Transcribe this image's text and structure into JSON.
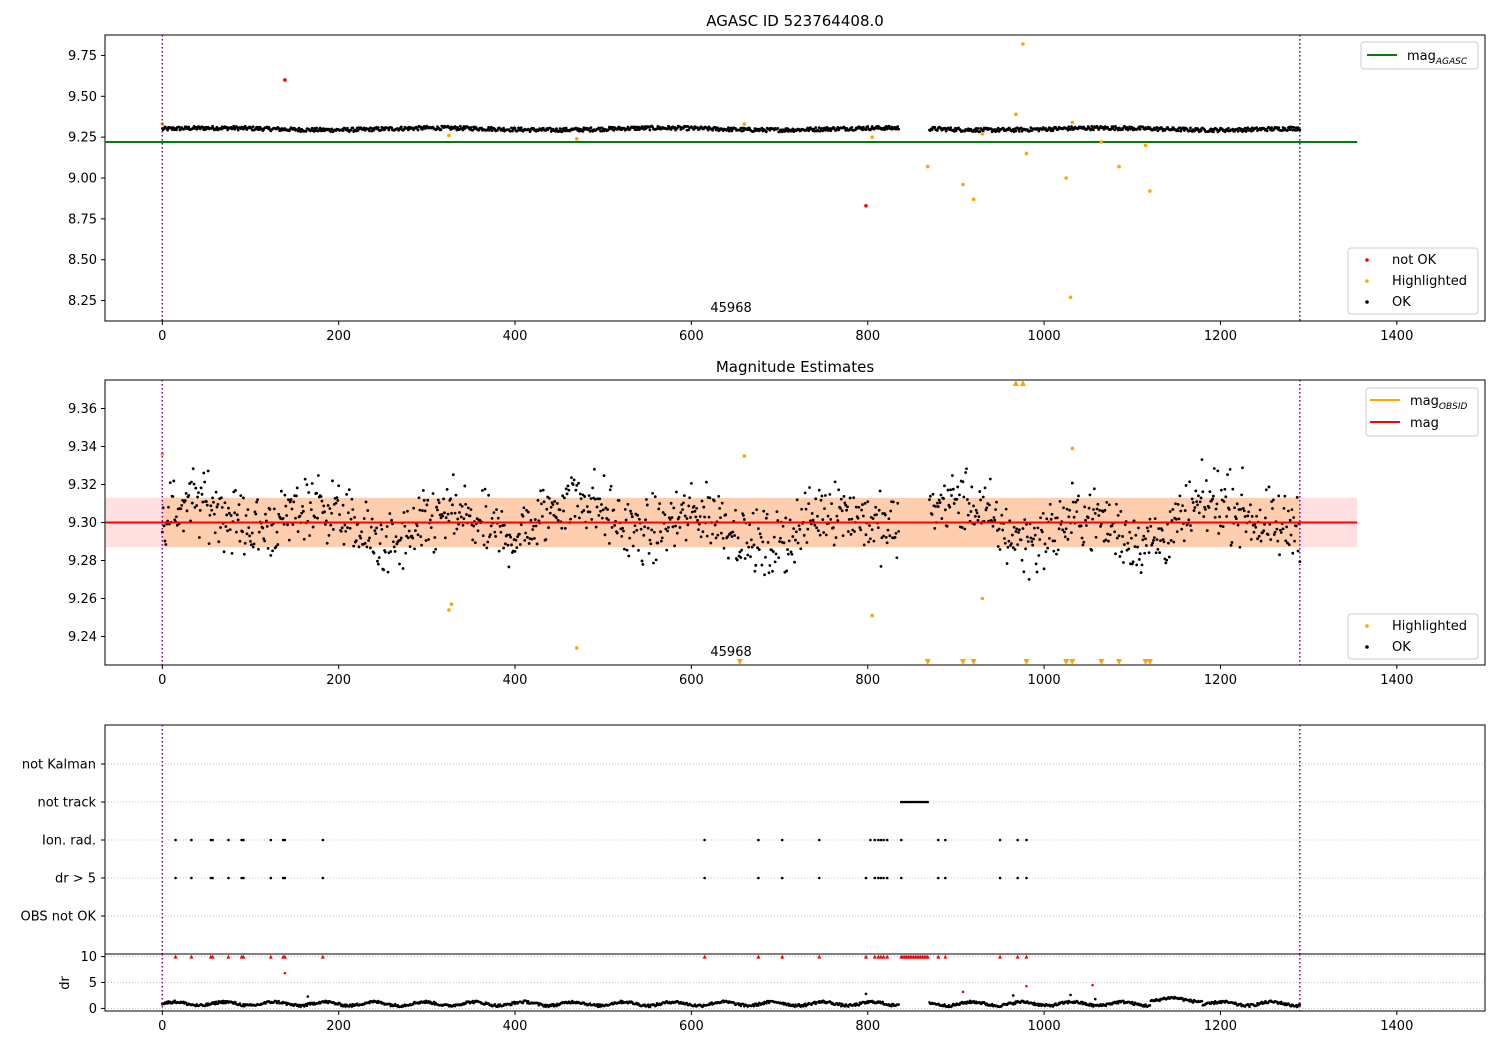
{
  "chart_data": [
    {
      "type": "scatter",
      "title": "AGASC ID 523764408.0",
      "xlim": [
        -65,
        1500
      ],
      "ylim": [
        8.125,
        9.875
      ],
      "xticks": [
        0,
        200,
        400,
        600,
        800,
        1000,
        1200,
        1400
      ],
      "yticks": [
        8.25,
        8.5,
        8.75,
        9.0,
        9.25,
        9.5,
        9.75
      ],
      "ytick_labels": [
        "8.25",
        "8.50",
        "8.75",
        "9.00",
        "9.25",
        "9.50",
        "9.75"
      ],
      "obsid_label": "45968",
      "obsid_x": 645,
      "obsid_bounds": [
        0,
        1290
      ],
      "mag_agasc": {
        "label": "mag$_{AGASC}$",
        "display": "mag",
        "sub": "AGASC",
        "value": 9.22,
        "x": [
          -65,
          1355
        ],
        "color": "#008000"
      },
      "series": [
        {
          "name": "not OK",
          "color": "#ff0000",
          "points": [
            [
              139,
              9.6
            ],
            [
              798,
              8.83
            ]
          ]
        },
        {
          "name": "Highlighted",
          "color": "#ffa500",
          "points": [
            [
              0,
              9.33
            ],
            [
              325,
              9.26
            ],
            [
              470,
              9.24
            ],
            [
              660,
              9.33
            ],
            [
              805,
              9.25
            ],
            [
              868,
              9.07
            ],
            [
              908,
              8.96
            ],
            [
              920,
              8.87
            ],
            [
              930,
              9.27
            ],
            [
              968,
              9.39
            ],
            [
              976,
              9.82
            ],
            [
              980,
              9.15
            ],
            [
              1025,
              9.0
            ],
            [
              1030,
              8.27
            ],
            [
              1032,
              9.34
            ],
            [
              1065,
              9.22
            ],
            [
              1085,
              9.07
            ],
            [
              1115,
              9.2
            ],
            [
              1120,
              8.92
            ]
          ]
        },
        {
          "name": "OK",
          "color": "#000000",
          "level": 9.3,
          "spread": 0.012,
          "segments": [
            [
              0,
              835
            ],
            [
              870,
              1290
            ]
          ]
        }
      ],
      "legend": {
        "upper_right": [
          "mag$_{AGASC}$"
        ],
        "lower_right": [
          "not OK",
          "Highlighted",
          "OK"
        ]
      }
    },
    {
      "type": "scatter",
      "title": "Magnitude Estimates",
      "xlim": [
        -65,
        1500
      ],
      "ylim": [
        9.225,
        9.375
      ],
      "xticks": [
        0,
        200,
        400,
        600,
        800,
        1000,
        1200,
        1400
      ],
      "yticks": [
        9.24,
        9.26,
        9.28,
        9.3,
        9.32,
        9.34,
        9.36
      ],
      "ytick_labels": [
        "9.24",
        "9.26",
        "9.28",
        "9.30",
        "9.32",
        "9.34",
        "9.36"
      ],
      "obsid_label": "45968",
      "obsid_x": 645,
      "obsid_bounds": [
        0,
        1290
      ],
      "mag_obsid": {
        "label": "mag$_{OBSID}$",
        "display": "mag",
        "sub": "OBSID",
        "value": 9.3,
        "band": [
          9.287,
          9.313
        ],
        "color": "#ffa500"
      },
      "mag": {
        "label": "mag",
        "value": 9.3,
        "band": [
          9.287,
          9.313
        ],
        "color": "#ff0000"
      },
      "series": [
        {
          "name": "Highlighted",
          "color": "#ffa500",
          "points": [
            [
              0,
              9.336
            ],
            [
              325,
              9.254
            ],
            [
              328,
              9.257
            ],
            [
              470,
              9.234
            ],
            [
              660,
              9.335
            ],
            [
              805,
              9.251
            ],
            [
              930,
              9.26
            ],
            [
              1032,
              9.339
            ]
          ],
          "clipped_top_x": [
            968,
            976
          ],
          "clipped_bottom_x": [
            655,
            868,
            908,
            920,
            980,
            1025,
            1032,
            1065,
            1085,
            1115,
            1120
          ]
        },
        {
          "name": "OK",
          "color": "#000000",
          "level": 9.3,
          "spread": 0.011,
          "segments": [
            [
              0,
              835
            ],
            [
              870,
              1290
            ]
          ]
        }
      ],
      "legend": {
        "upper_right": [
          "mag$_{OBSID}$",
          "mag"
        ],
        "lower_right": [
          "Highlighted",
          "OK"
        ]
      }
    },
    {
      "type": "scatter",
      "title": "",
      "xlim": [
        -65,
        1500
      ],
      "xticks": [
        0,
        200,
        400,
        600,
        800,
        1000,
        1200,
        1400
      ],
      "categories": [
        "not Kalman",
        "not track",
        "Ion. rad.",
        "dr > 5",
        "OBS not OK"
      ],
      "flags": {
        "not track": {
          "x_range": [
            838,
            868
          ]
        },
        "Ion. rad.": {
          "x": [
            15,
            33,
            55,
            57,
            75,
            90,
            92,
            123,
            137,
            139,
            182,
            615,
            676,
            703,
            745,
            803,
            808,
            812,
            815,
            818,
            822,
            838,
            880,
            888,
            950,
            970,
            980
          ]
        },
        "dr > 5": {
          "x": [
            15,
            33,
            55,
            57,
            75,
            90,
            92,
            123,
            137,
            139,
            182,
            615,
            676,
            703,
            745,
            798,
            808,
            812,
            815,
            818,
            822,
            838,
            880,
            888,
            950,
            970,
            980
          ]
        }
      }
    },
    {
      "type": "scatter",
      "title": "",
      "ylabel": "dr",
      "xlim": [
        -65,
        1500
      ],
      "ylim": [
        -0.5,
        10.5
      ],
      "xticks": [
        0,
        200,
        400,
        600,
        800,
        1000,
        1200,
        1400
      ],
      "yticks": [
        0,
        5,
        10
      ],
      "ytick_labels": [
        "0",
        "5",
        "10"
      ],
      "clipped_dr": {
        "color": "#ff0000",
        "x": [
          15,
          33,
          55,
          57,
          75,
          90,
          92,
          123,
          137,
          139,
          182,
          615,
          676,
          703,
          745,
          798,
          808,
          812,
          815,
          818,
          822,
          880,
          888,
          950,
          970,
          980
        ],
        "dense_range": [
          838,
          868
        ]
      },
      "large_dr": {
        "color": "#ff0000",
        "points": [
          [
            139,
            6.8
          ],
          [
            908,
            3.2
          ],
          [
            980,
            4.3
          ],
          [
            1055,
            4.5
          ]
        ]
      },
      "ok_dr": {
        "color": "#000000",
        "level": 0.9,
        "amplitude": 0.6,
        "segments": [
          [
            0,
            835
          ],
          [
            870,
            1290
          ]
        ],
        "extra_points": [
          [
            165,
            2.3
          ],
          [
            798,
            2.8
          ],
          [
            965,
            2.5
          ],
          [
            1030,
            2.6
          ],
          [
            1058,
            1.8
          ]
        ]
      }
    }
  ]
}
